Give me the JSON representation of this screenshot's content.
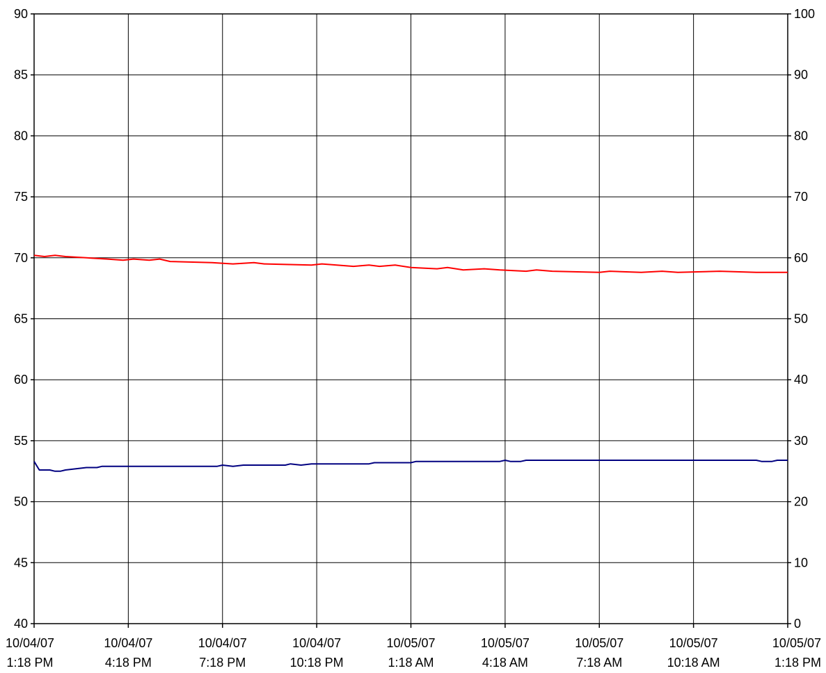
{
  "chart_data": {
    "type": "line",
    "title": "",
    "xlabel": "",
    "ylabel": "",
    "grid": true,
    "x_ticks": [
      [
        "10/04/07",
        "1:18 PM"
      ],
      [
        "10/04/07",
        "4:18 PM"
      ],
      [
        "10/04/07",
        "7:18 PM"
      ],
      [
        "10/04/07",
        "10:18 PM"
      ],
      [
        "10/05/07",
        "1:18 AM"
      ],
      [
        "10/05/07",
        "4:18 AM"
      ],
      [
        "10/05/07",
        "7:18 AM"
      ],
      [
        "10/05/07",
        "10:18 AM"
      ],
      [
        "10/05/07",
        "1:18 PM"
      ]
    ],
    "x_range": [
      "10/04/07 1:18 PM",
      "10/05/07 1:18 PM"
    ],
    "y_left": {
      "min": 40,
      "max": 90,
      "step": 5,
      "ticks": [
        "90",
        "85",
        "80",
        "75",
        "70",
        "65",
        "60",
        "55",
        "50",
        "45",
        "40"
      ]
    },
    "y_right": {
      "min": 0,
      "max": 100,
      "step": 10,
      "ticks": [
        "100",
        "90",
        "80",
        "70",
        "60",
        "50",
        "40",
        "30",
        "20",
        "10",
        "0"
      ]
    },
    "series": [
      {
        "color": "#ff0000",
        "axis": "left",
        "points": [
          [
            "10/04/07 13:18",
            70.2
          ],
          [
            "10/04/07 13:38",
            70.1
          ],
          [
            "10/04/07 13:58",
            70.2
          ],
          [
            "10/04/07 14:18",
            70.1
          ],
          [
            "10/04/07 14:58",
            70.0
          ],
          [
            "10/04/07 15:38",
            69.9
          ],
          [
            "10/04/07 16:08",
            69.8
          ],
          [
            "10/04/07 16:28",
            69.9
          ],
          [
            "10/04/07 16:58",
            69.8
          ],
          [
            "10/04/07 17:18",
            69.9
          ],
          [
            "10/04/07 17:38",
            69.7
          ],
          [
            "10/04/07 18:58",
            69.6
          ],
          [
            "10/04/07 19:38",
            69.5
          ],
          [
            "10/04/07 20:18",
            69.6
          ],
          [
            "10/04/07 20:38",
            69.5
          ],
          [
            "10/04/07 22:08",
            69.4
          ],
          [
            "10/04/07 22:28",
            69.5
          ],
          [
            "10/04/07 23:28",
            69.3
          ],
          [
            "10/04/07 23:58",
            69.4
          ],
          [
            "10/05/07 00:18",
            69.3
          ],
          [
            "10/05/07 00:48",
            69.4
          ],
          [
            "10/05/07 01:18",
            69.2
          ],
          [
            "10/05/07 02:08",
            69.1
          ],
          [
            "10/05/07 02:28",
            69.2
          ],
          [
            "10/05/07 02:58",
            69.0
          ],
          [
            "10/05/07 03:38",
            69.1
          ],
          [
            "10/05/07 04:08",
            69.0
          ],
          [
            "10/05/07 04:58",
            68.9
          ],
          [
            "10/05/07 05:18",
            69.0
          ],
          [
            "10/05/07 05:48",
            68.9
          ],
          [
            "10/05/07 07:18",
            68.8
          ],
          [
            "10/05/07 07:38",
            68.9
          ],
          [
            "10/05/07 08:38",
            68.8
          ],
          [
            "10/05/07 09:18",
            68.9
          ],
          [
            "10/05/07 09:48",
            68.8
          ],
          [
            "10/05/07 11:08",
            68.9
          ],
          [
            "10/05/07 12:18",
            68.8
          ],
          [
            "10/05/07 13:18",
            68.8
          ]
        ]
      },
      {
        "color": "#000080",
        "axis": "right",
        "points": [
          [
            "10/04/07 13:18",
            26.6
          ],
          [
            "10/04/07 13:28",
            25.2
          ],
          [
            "10/04/07 13:48",
            25.2
          ],
          [
            "10/04/07 13:58",
            25.0
          ],
          [
            "10/04/07 14:08",
            25.0
          ],
          [
            "10/04/07 14:18",
            25.2
          ],
          [
            "10/04/07 14:38",
            25.4
          ],
          [
            "10/04/07 14:58",
            25.6
          ],
          [
            "10/04/07 15:18",
            25.6
          ],
          [
            "10/04/07 15:28",
            25.8
          ],
          [
            "10/04/07 19:08",
            25.8
          ],
          [
            "10/04/07 19:18",
            26.0
          ],
          [
            "10/04/07 19:38",
            25.8
          ],
          [
            "10/04/07 19:58",
            26.0
          ],
          [
            "10/04/07 21:18",
            26.0
          ],
          [
            "10/04/07 21:28",
            26.2
          ],
          [
            "10/04/07 21:48",
            26.0
          ],
          [
            "10/04/07 22:08",
            26.2
          ],
          [
            "10/04/07 23:58",
            26.2
          ],
          [
            "10/05/07 00:08",
            26.4
          ],
          [
            "10/05/07 01:18",
            26.4
          ],
          [
            "10/05/07 01:28",
            26.6
          ],
          [
            "10/05/07 04:08",
            26.6
          ],
          [
            "10/05/07 04:18",
            26.8
          ],
          [
            "10/05/07 04:28",
            26.6
          ],
          [
            "10/05/07 04:48",
            26.6
          ],
          [
            "10/05/07 04:58",
            26.8
          ],
          [
            "10/05/07 12:18",
            26.8
          ],
          [
            "10/05/07 12:28",
            26.6
          ],
          [
            "10/05/07 12:48",
            26.6
          ],
          [
            "10/05/07 12:58",
            26.8
          ],
          [
            "10/05/07 13:18",
            26.8
          ]
        ]
      }
    ]
  }
}
